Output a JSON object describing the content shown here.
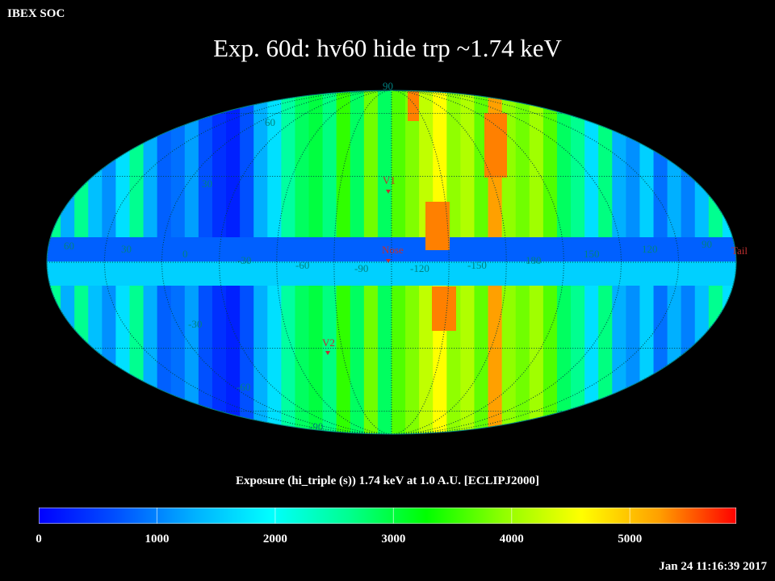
{
  "header": {
    "corner_label": "IBEX SOC",
    "title": "Exp.   60d: hv60 hide trp ~1.74 keV"
  },
  "map": {
    "projection": "Mollweide (ecliptic)",
    "lat_labels": [
      "90",
      "60",
      "30",
      "-30",
      "-60",
      "-90"
    ],
    "lon_labels": [
      "60",
      "30",
      "0",
      "-30",
      "-60",
      "-90",
      "-120",
      "-150",
      "180",
      "150",
      "120",
      "90"
    ],
    "markers": [
      {
        "label": "V1",
        "lon": -95,
        "lat": 35
      },
      {
        "label": "Nose",
        "lon": -105,
        "lat": -1
      },
      {
        "label": "V2",
        "lon": -74,
        "lat": -33
      },
      {
        "label": "Tail",
        "lon": 75,
        "lat": 1
      }
    ],
    "colors": {
      "low": "#0000ff",
      "mid": "#00ff60",
      "high": "#ff3000",
      "grid": "#008080",
      "markers": "#c03030"
    }
  },
  "colorbar": {
    "caption": "Exposure (hi_triple (s))  1.74 keV at 1.0 A.U. [ECLIPJ2000]",
    "tick_labels": [
      "0",
      "1000",
      "2000",
      "3000",
      "4000",
      "5000"
    ],
    "tick_values": [
      0,
      1000,
      2000,
      3000,
      4000,
      5000
    ],
    "min": 0,
    "max": 5900,
    "colormap": [
      "#0000ff",
      "#0050ff",
      "#00b0ff",
      "#00ffff",
      "#00ff90",
      "#00ff00",
      "#90ff00",
      "#ffff00",
      "#ffa000",
      "#ff0000"
    ]
  },
  "footer": {
    "timestamp": "Jan 24 11:16:39 2017"
  }
}
